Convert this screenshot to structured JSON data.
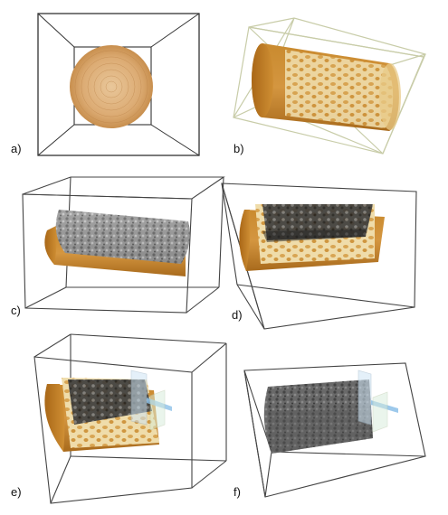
{
  "figure": {
    "panels": [
      {
        "id": "a",
        "label": "a)",
        "depicts": "cylinder-end-view"
      },
      {
        "id": "b",
        "label": "b)",
        "depicts": "cylinder-oblique-view"
      },
      {
        "id": "c",
        "label": "c)",
        "depicts": "half-cylinder-grey-interior"
      },
      {
        "id": "d",
        "label": "d)",
        "depicts": "half-cylinder-orange-interior"
      },
      {
        "id": "e",
        "label": "e)",
        "depicts": "half-cylinder-with-slice-planes"
      },
      {
        "id": "f",
        "label": "f)",
        "depicts": "grey-volume-with-slice-planes"
      }
    ],
    "colors": {
      "box_edge": "#333333",
      "box_edge_b": "#c8cca8",
      "bone_orange": "#c8862a",
      "bone_light": "#f1dfae",
      "grey_volume": "#8a8a8a",
      "slice_blue": "#8cc0e8"
    }
  }
}
